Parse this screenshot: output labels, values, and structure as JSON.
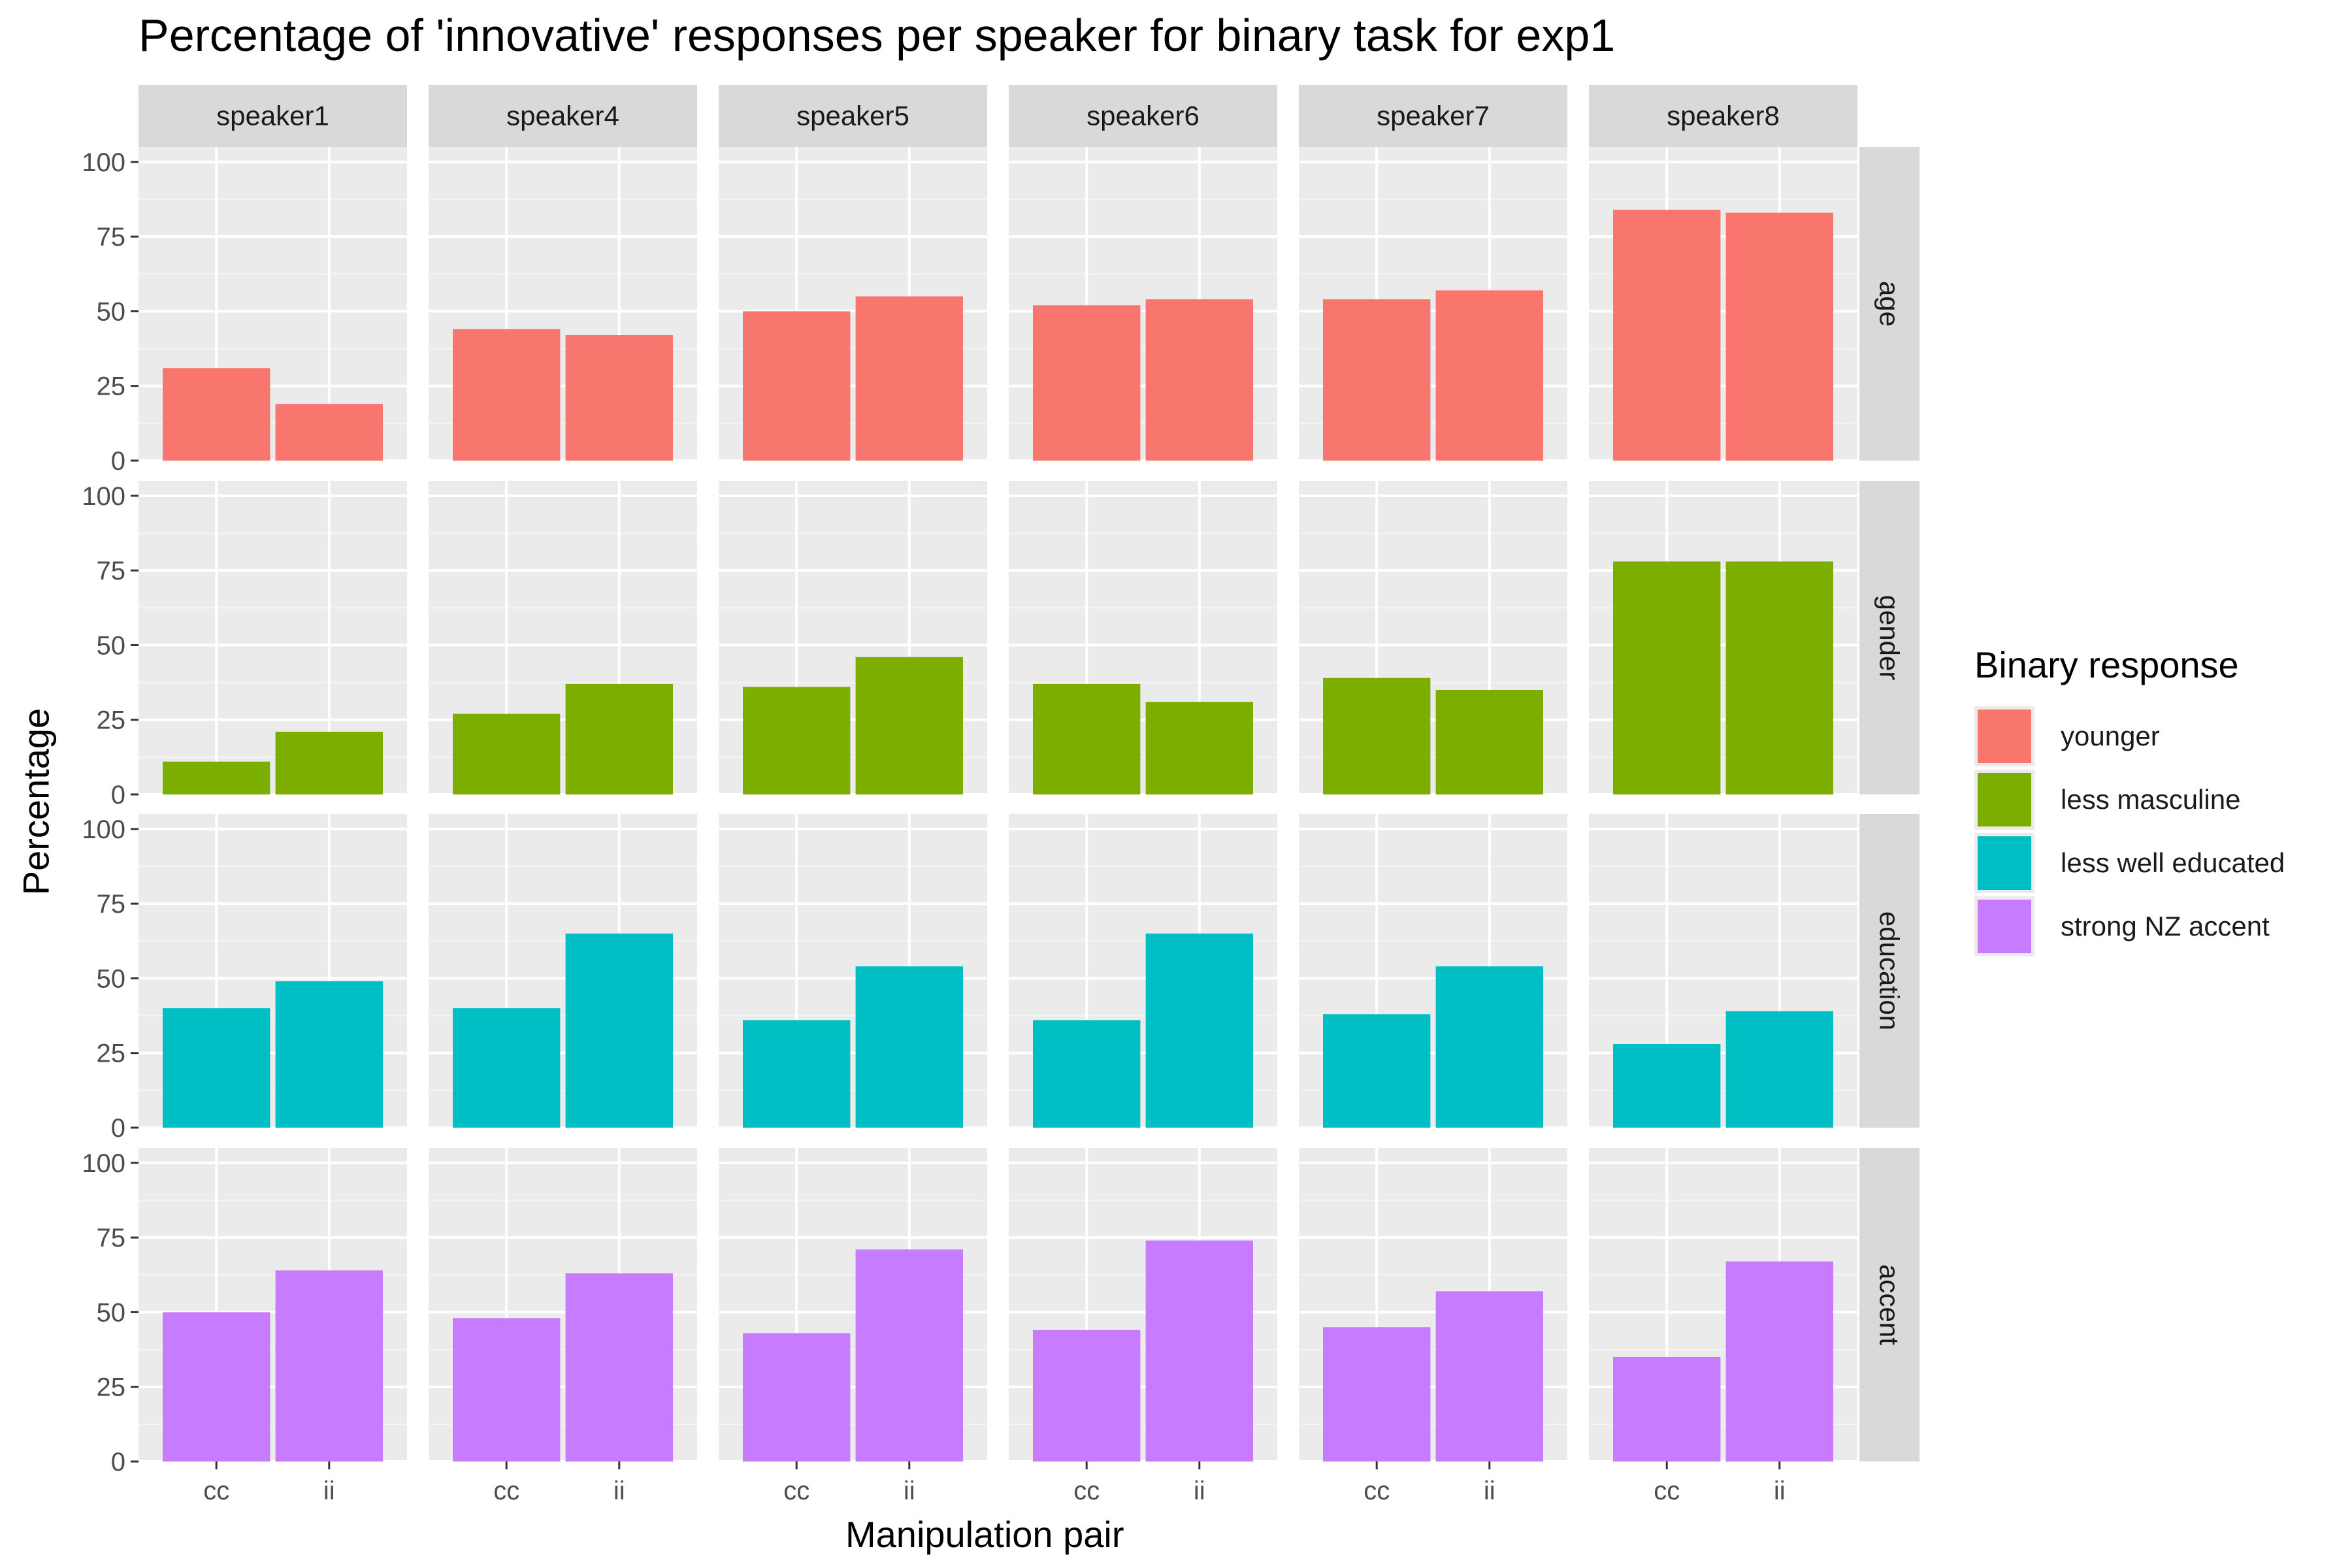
{
  "chart_data": {
    "type": "bar",
    "title": "Percentage of 'innovative' responses per speaker for binary task for exp1",
    "xlabel": "Manipulation pair",
    "ylabel": "Percentage",
    "ylim": [
      0,
      105
    ],
    "y_ticks": [
      "0",
      "25",
      "50",
      "75",
      "100"
    ],
    "categories": [
      "cc",
      "ii"
    ],
    "speakers": [
      "speaker1",
      "speaker4",
      "speaker5",
      "speaker6",
      "speaker7",
      "speaker8"
    ],
    "rows": [
      {
        "label": "age",
        "legend": "younger",
        "color": "#F8766D",
        "values": [
          [
            31,
            19
          ],
          [
            44,
            42
          ],
          [
            50,
            55
          ],
          [
            52,
            54
          ],
          [
            54,
            57
          ],
          [
            84,
            83
          ]
        ]
      },
      {
        "label": "gender",
        "legend": "less masculine",
        "color": "#7CAE00",
        "values": [
          [
            11,
            21
          ],
          [
            27,
            37
          ],
          [
            36,
            46
          ],
          [
            37,
            31
          ],
          [
            39,
            35
          ],
          [
            78,
            78
          ]
        ]
      },
      {
        "label": "education",
        "legend": "less well educated",
        "color": "#00BFC4",
        "values": [
          [
            40,
            49
          ],
          [
            40,
            65
          ],
          [
            36,
            54
          ],
          [
            36,
            65
          ],
          [
            38,
            54
          ],
          [
            28,
            39
          ]
        ]
      },
      {
        "label": "accent",
        "legend": "strong NZ accent",
        "color": "#C77CFF",
        "values": [
          [
            50,
            64
          ],
          [
            48,
            63
          ],
          [
            43,
            71
          ],
          [
            44,
            74
          ],
          [
            45,
            57
          ],
          [
            35,
            67
          ]
        ]
      }
    ],
    "legend_title": "Binary response",
    "legend_position": "right",
    "grid": true
  }
}
